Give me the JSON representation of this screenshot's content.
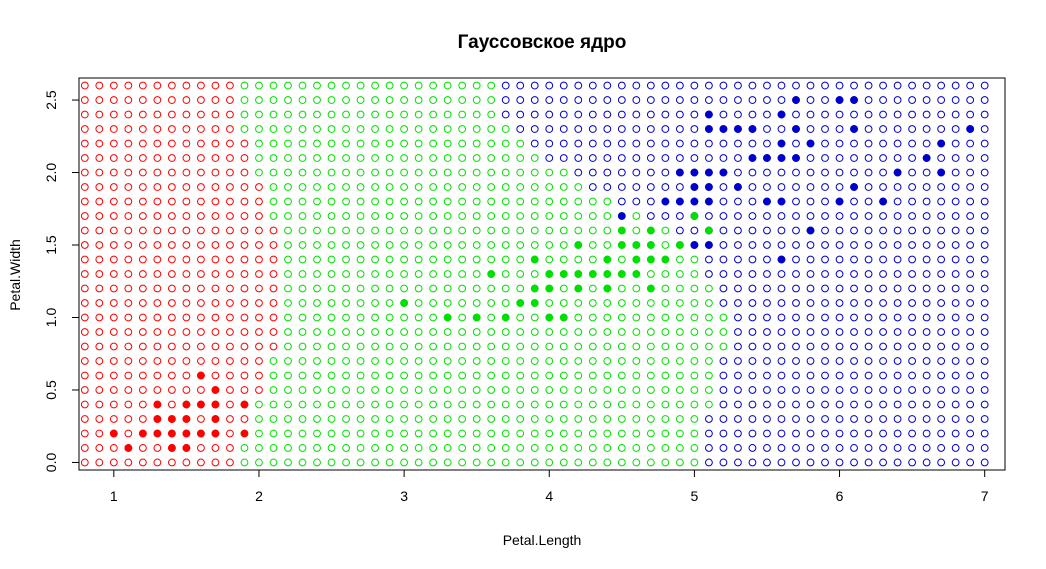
{
  "chart_data": {
    "type": "scatter",
    "title": "Гауссовское ядро",
    "xlabel": "Petal.Length",
    "ylabel": "Petal.Width",
    "xlim": [
      0.76,
      7.14
    ],
    "ylim": [
      -0.052,
      2.652
    ],
    "x_ticks": [
      "1",
      "2",
      "3",
      "4",
      "5",
      "6",
      "7"
    ],
    "y_ticks": [
      "0.0",
      "0.5",
      "1.0",
      "1.5",
      "2.0",
      "2.5"
    ],
    "colors": {
      "setosa": "#ff0000",
      "versicolor": "#00e000",
      "virginica": "#0000cc",
      "axis": "#000000"
    },
    "classification_grid": {
      "x_start": 0.8,
      "x_step": 0.1,
      "x_count": 63,
      "y_start": 0.0,
      "y_step": 0.1,
      "y_count": 27,
      "boundaries": [
        {
          "y": 0.0,
          "red_max": 1.8,
          "green_max": 5.0
        },
        {
          "y": 0.1,
          "red_max": 1.8,
          "green_max": 5.0
        },
        {
          "y": 0.2,
          "red_max": 1.8,
          "green_max": 5.0
        },
        {
          "y": 0.3,
          "red_max": 1.9,
          "green_max": 5.0
        },
        {
          "y": 0.4,
          "red_max": 1.9,
          "green_max": 5.1
        },
        {
          "y": 0.5,
          "red_max": 2.0,
          "green_max": 5.1
        },
        {
          "y": 0.6,
          "red_max": 2.0,
          "green_max": 5.1
        },
        {
          "y": 0.7,
          "red_max": 2.0,
          "green_max": 5.1
        },
        {
          "y": 0.8,
          "red_max": 2.1,
          "green_max": 5.2
        },
        {
          "y": 0.9,
          "red_max": 2.1,
          "green_max": 5.2
        },
        {
          "y": 1.0,
          "red_max": 2.1,
          "green_max": 5.2
        },
        {
          "y": 1.1,
          "red_max": 2.1,
          "green_max": 5.1
        },
        {
          "y": 1.2,
          "red_max": 2.1,
          "green_max": 5.1
        },
        {
          "y": 1.3,
          "red_max": 2.1,
          "green_max": 5.0
        },
        {
          "y": 1.4,
          "red_max": 2.1,
          "green_max": 5.0
        },
        {
          "y": 1.5,
          "red_max": 2.1,
          "green_max": 4.9
        },
        {
          "y": 1.6,
          "red_max": 2.1,
          "green_max": 4.8
        },
        {
          "y": 1.7,
          "red_max": 2.0,
          "green_max": 4.6
        },
        {
          "y": 1.8,
          "red_max": 2.0,
          "green_max": 4.4
        },
        {
          "y": 1.9,
          "red_max": 2.0,
          "green_max": 4.2
        },
        {
          "y": 2.0,
          "red_max": 1.9,
          "green_max": 4.1
        },
        {
          "y": 2.1,
          "red_max": 1.9,
          "green_max": 3.9
        },
        {
          "y": 2.2,
          "red_max": 1.9,
          "green_max": 3.8
        },
        {
          "y": 2.3,
          "red_max": 1.8,
          "green_max": 3.7
        },
        {
          "y": 2.4,
          "red_max": 1.8,
          "green_max": 3.6
        },
        {
          "y": 2.5,
          "red_max": 1.8,
          "green_max": 3.6
        },
        {
          "y": 2.6,
          "red_max": 1.8,
          "green_max": 3.6
        }
      ]
    },
    "series": [
      {
        "class": "setosa",
        "color": "#ff0000",
        "points": [
          [
            1.0,
            0.2
          ],
          [
            1.1,
            0.1
          ],
          [
            1.2,
            0.2
          ],
          [
            1.3,
            0.2
          ],
          [
            1.3,
            0.3
          ],
          [
            1.3,
            0.4
          ],
          [
            1.4,
            0.1
          ],
          [
            1.4,
            0.2
          ],
          [
            1.4,
            0.3
          ],
          [
            1.5,
            0.1
          ],
          [
            1.5,
            0.2
          ],
          [
            1.5,
            0.3
          ],
          [
            1.5,
            0.4
          ],
          [
            1.6,
            0.2
          ],
          [
            1.6,
            0.4
          ],
          [
            1.6,
            0.6
          ],
          [
            1.7,
            0.2
          ],
          [
            1.7,
            0.3
          ],
          [
            1.7,
            0.4
          ],
          [
            1.7,
            0.5
          ],
          [
            1.9,
            0.2
          ],
          [
            1.9,
            0.4
          ]
        ]
      },
      {
        "class": "versicolor",
        "color": "#00e000",
        "points": [
          [
            3.0,
            1.1
          ],
          [
            3.3,
            1.0
          ],
          [
            3.5,
            1.0
          ],
          [
            3.6,
            1.3
          ],
          [
            3.7,
            1.0
          ],
          [
            3.8,
            1.1
          ],
          [
            3.9,
            1.1
          ],
          [
            3.9,
            1.2
          ],
          [
            3.9,
            1.4
          ],
          [
            4.0,
            1.0
          ],
          [
            4.0,
            1.2
          ],
          [
            4.0,
            1.3
          ],
          [
            4.1,
            1.0
          ],
          [
            4.1,
            1.3
          ],
          [
            4.2,
            1.2
          ],
          [
            4.2,
            1.3
          ],
          [
            4.2,
            1.5
          ],
          [
            4.3,
            1.3
          ],
          [
            4.4,
            1.2
          ],
          [
            4.4,
            1.3
          ],
          [
            4.4,
            1.4
          ],
          [
            4.5,
            1.3
          ],
          [
            4.5,
            1.5
          ],
          [
            4.5,
            1.6
          ],
          [
            4.6,
            1.3
          ],
          [
            4.6,
            1.4
          ],
          [
            4.6,
            1.5
          ],
          [
            4.7,
            1.2
          ],
          [
            4.7,
            1.4
          ],
          [
            4.7,
            1.5
          ],
          [
            4.7,
            1.6
          ],
          [
            4.8,
            1.4
          ],
          [
            4.8,
            1.8
          ],
          [
            4.9,
            1.5
          ],
          [
            5.0,
            1.7
          ],
          [
            5.1,
            1.6
          ]
        ]
      },
      {
        "class": "virginica",
        "color": "#0000cc",
        "points": [
          [
            4.5,
            1.7
          ],
          [
            4.8,
            1.8
          ],
          [
            4.9,
            1.8
          ],
          [
            4.9,
            2.0
          ],
          [
            5.0,
            1.5
          ],
          [
            5.0,
            1.8
          ],
          [
            5.0,
            1.9
          ],
          [
            5.0,
            2.0
          ],
          [
            5.1,
            1.5
          ],
          [
            5.1,
            1.8
          ],
          [
            5.1,
            1.9
          ],
          [
            5.1,
            2.0
          ],
          [
            5.1,
            2.3
          ],
          [
            5.1,
            2.4
          ],
          [
            5.2,
            2.0
          ],
          [
            5.2,
            2.3
          ],
          [
            5.3,
            1.9
          ],
          [
            5.3,
            2.3
          ],
          [
            5.4,
            2.1
          ],
          [
            5.4,
            2.3
          ],
          [
            5.5,
            1.8
          ],
          [
            5.5,
            2.1
          ],
          [
            5.6,
            1.4
          ],
          [
            5.6,
            1.8
          ],
          [
            5.6,
            2.1
          ],
          [
            5.6,
            2.2
          ],
          [
            5.6,
            2.4
          ],
          [
            5.7,
            2.1
          ],
          [
            5.7,
            2.3
          ],
          [
            5.7,
            2.5
          ],
          [
            5.8,
            1.6
          ],
          [
            5.8,
            2.2
          ],
          [
            6.0,
            1.8
          ],
          [
            6.0,
            2.5
          ],
          [
            6.1,
            1.9
          ],
          [
            6.1,
            2.3
          ],
          [
            6.1,
            2.5
          ],
          [
            6.3,
            1.8
          ],
          [
            6.4,
            2.0
          ],
          [
            6.6,
            2.1
          ],
          [
            6.7,
            2.0
          ],
          [
            6.7,
            2.2
          ],
          [
            6.9,
            2.3
          ]
        ]
      }
    ]
  }
}
